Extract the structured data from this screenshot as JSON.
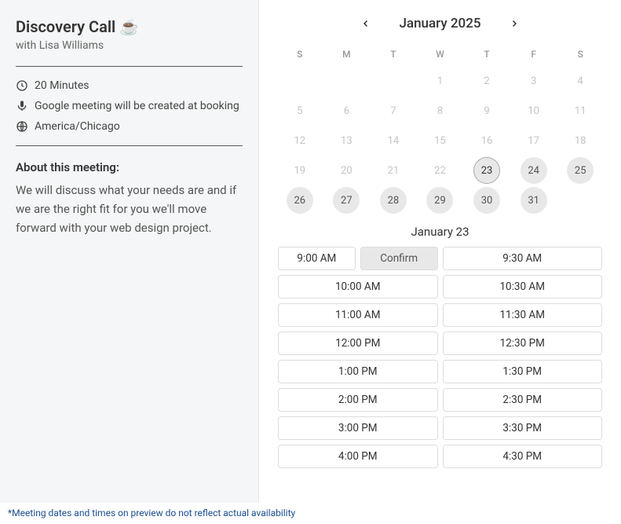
{
  "sidebar": {
    "title": "Discovery Call ☕",
    "with_prefix": "with ",
    "host": "Lisa Williams",
    "duration": "20 Minutes",
    "location_text": "Google meeting will be created at booking",
    "timezone": "America/Chicago",
    "about_heading": "About this meeting:",
    "about_text": "We will discuss what your needs are and if we are the right fit for you we'll move forward with your web design project."
  },
  "calendar": {
    "month_label": "January 2025",
    "dow": [
      "S",
      "M",
      "T",
      "W",
      "T",
      "F",
      "S"
    ],
    "blanks_before": 3,
    "days_in_month": 31,
    "disabled_cutoff": 22,
    "available_days": [
      23,
      24,
      25,
      26,
      27,
      28,
      29,
      30,
      31
    ],
    "selected_day": 23,
    "colors": {
      "disabled_text": "#c4c4c4",
      "available_bg": "#e8e8e8",
      "available_text": "#555555",
      "selected_border": "#aaaaaa"
    }
  },
  "booking": {
    "selected_date_label": "January 23",
    "confirm_label": "Confirm",
    "selected_slot": "9:00 AM",
    "slot_pairs": [
      [
        "9:00 AM",
        "9:30 AM"
      ],
      [
        "10:00 AM",
        "10:30 AM"
      ],
      [
        "11:00 AM",
        "11:30 AM"
      ],
      [
        "12:00 PM",
        "12:30 PM"
      ],
      [
        "1:00 PM",
        "1:30 PM"
      ],
      [
        "2:00 PM",
        "2:30 PM"
      ],
      [
        "3:00 PM",
        "3:30 PM"
      ],
      [
        "4:00 PM",
        "4:30 PM"
      ]
    ]
  },
  "footnote": "*Meeting dates and times on preview do not reflect actual availability"
}
